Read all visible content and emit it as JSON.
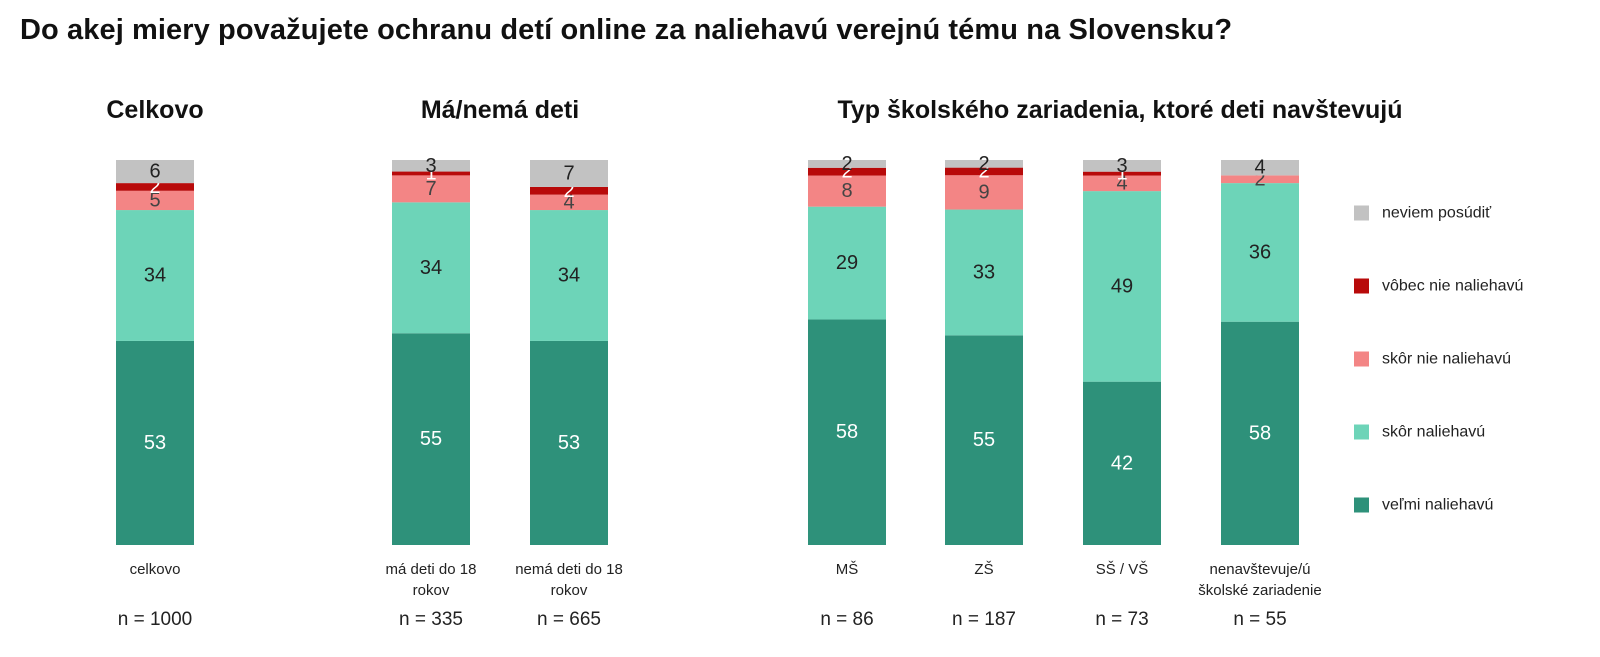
{
  "title": "Do akej miery považujete ochranu detí online za naliehavú verejnú tému na Slovensku?",
  "chart_data": {
    "type": "bar",
    "stacked": true,
    "groups": [
      {
        "title": "Celkovo",
        "bars": [
          0
        ]
      },
      {
        "title": "Má/nemá deti",
        "bars": [
          1,
          2
        ]
      },
      {
        "title": "Typ školského zariadenia, ktoré deti navštevujú",
        "bars": [
          3,
          4,
          5,
          6
        ]
      }
    ],
    "categories": [
      [
        "celkovo"
      ],
      [
        "má deti do 18",
        "rokov"
      ],
      [
        "nemá deti do 18",
        "rokov"
      ],
      [
        "MŠ"
      ],
      [
        "ZŠ"
      ],
      [
        "SŠ / VŠ"
      ],
      [
        "nenavštevuje/ú",
        "školské zariadenie"
      ]
    ],
    "n_labels": [
      "n = 1000",
      "n = 335",
      "n = 665",
      "n = 86",
      "n = 187",
      "n = 73",
      "n = 55"
    ],
    "series": [
      {
        "name": "veľmi naliehavú",
        "color": "#2e917a",
        "label_color": "#ffffff",
        "values": [
          53,
          55,
          53,
          58,
          55,
          42,
          58
        ]
      },
      {
        "name": "skôr naliehavú",
        "color": "#6dd4b8",
        "label_color": "#222222",
        "values": [
          34,
          34,
          34,
          29,
          33,
          49,
          36
        ]
      },
      {
        "name": "skôr nie naliehavú",
        "color": "#f38585",
        "label_color": "#444444",
        "values": [
          5,
          7,
          4,
          8,
          9,
          4,
          2
        ]
      },
      {
        "name": "vôbec nie naliehavú",
        "color": "#b80a0a",
        "label_color": "#ffffff",
        "values": [
          2,
          1,
          2,
          2,
          2,
          1,
          0
        ]
      },
      {
        "name": "neviem posúdiť",
        "color": "#c2c2c2",
        "label_color": "#222222",
        "values": [
          6,
          3,
          7,
          2,
          2,
          3,
          4
        ]
      }
    ],
    "legend_order": [
      "neviem posúdiť",
      "vôbec nie naliehavú",
      "skôr nie naliehavú",
      "skôr naliehavú",
      "veľmi naliehavú"
    ],
    "legend_position": "right",
    "ylim": [
      0,
      100
    ]
  }
}
